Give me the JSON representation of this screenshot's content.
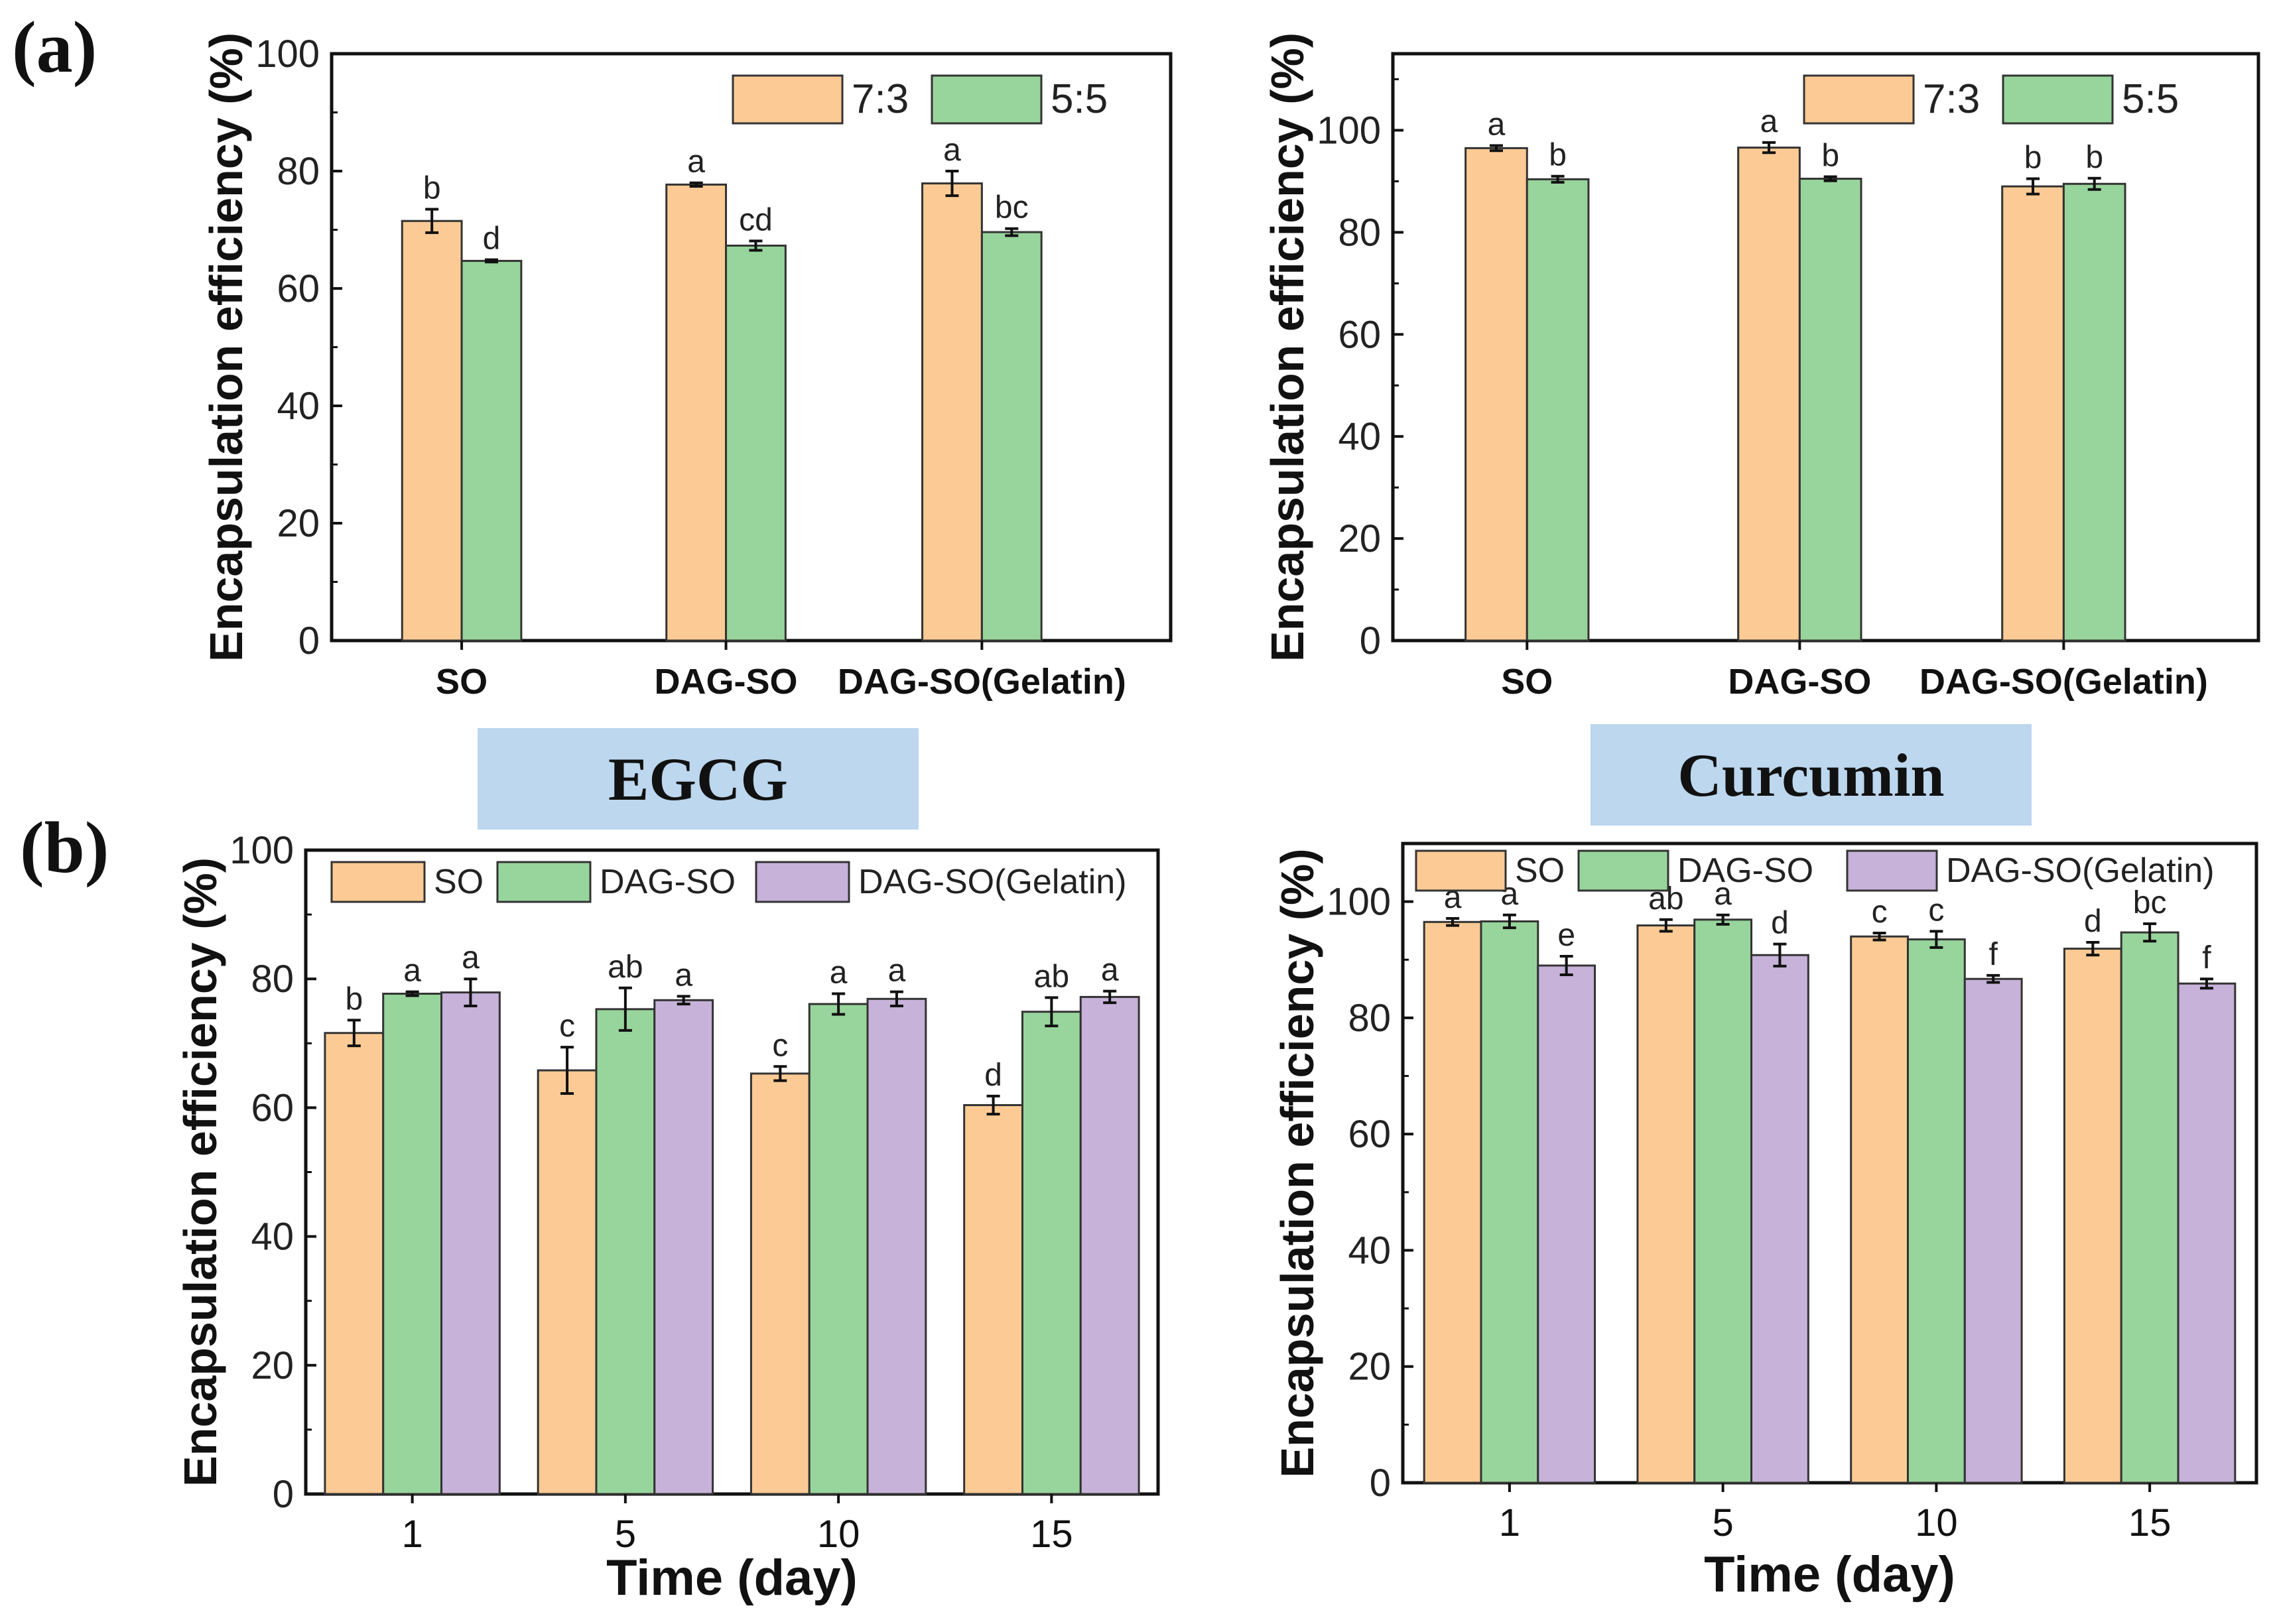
{
  "panel_labels": {
    "a": "(a)",
    "b": "(b)"
  },
  "section_titles": {
    "egcg": "EGCG",
    "curcumin": "Curcumin"
  },
  "colors": {
    "orange": "#fccb95",
    "green": "#98d59c",
    "purple": "#c7b2d9",
    "axis": "#111111"
  },
  "chart_data": [
    {
      "id": "a_egcg",
      "type": "bar",
      "title": "",
      "xlabel": "",
      "ylabel": "Encapsulation efficiency (%)",
      "ylim": [
        0,
        100
      ],
      "yticks": [
        "0",
        "20",
        "40",
        "60",
        "80",
        "100"
      ],
      "legend_position": "top-right",
      "categories": [
        "SO",
        "DAG-SO",
        "DAG-SO(Gelatin)"
      ],
      "series": [
        {
          "name": "7:3",
          "color": "#fccb95",
          "values": [
            71.5,
            77.7,
            77.9
          ],
          "errors": [
            2.0,
            0.3,
            2.1
          ],
          "letters": [
            "b",
            "a",
            "a"
          ]
        },
        {
          "name": "5:5",
          "color": "#98d59c",
          "values": [
            64.7,
            67.3,
            69.6
          ],
          "errors": [
            0.2,
            0.8,
            0.6
          ],
          "letters": [
            "d",
            "cd",
            "bc"
          ]
        }
      ]
    },
    {
      "id": "a_curcumin",
      "type": "bar",
      "title": "",
      "xlabel": "",
      "ylabel": "Encapsulation efficiency (%)",
      "ylim": [
        0,
        115
      ],
      "yticks": [
        "0",
        "20",
        "40",
        "60",
        "80",
        "100"
      ],
      "legend_position": "top-right",
      "categories": [
        "SO",
        "DAG-SO",
        "DAG-SO(Gelatin)"
      ],
      "series": [
        {
          "name": "7:3",
          "color": "#fccb95",
          "values": [
            96.5,
            96.6,
            89.0
          ],
          "errors": [
            0.5,
            1.0,
            1.5
          ],
          "letters": [
            "a",
            "a",
            "b"
          ]
        },
        {
          "name": "5:5",
          "color": "#98d59c",
          "values": [
            90.4,
            90.5,
            89.5
          ],
          "errors": [
            0.6,
            0.4,
            1.1
          ],
          "letters": [
            "b",
            "b",
            "b"
          ]
        }
      ]
    },
    {
      "id": "b_egcg",
      "type": "bar",
      "title": "EGCG",
      "xlabel": "Time (day)",
      "ylabel": "Encapsulation efficiency (%)",
      "ylim": [
        0,
        100
      ],
      "yticks": [
        "0",
        "20",
        "40",
        "60",
        "80",
        "100"
      ],
      "legend_position": "top",
      "categories": [
        "1",
        "5",
        "10",
        "15"
      ],
      "series": [
        {
          "name": "SO",
          "color": "#fccb95",
          "values": [
            71.6,
            65.8,
            65.3,
            60.4
          ],
          "errors": [
            2.0,
            3.6,
            1.1,
            1.4
          ],
          "letters": [
            "b",
            "c",
            "c",
            "d"
          ]
        },
        {
          "name": "DAG-SO",
          "color": "#98d59c",
          "values": [
            77.7,
            75.3,
            76.1,
            74.9
          ],
          "errors": [
            0.3,
            3.3,
            1.6,
            2.2
          ],
          "letters": [
            "a",
            "ab",
            "a",
            "ab"
          ]
        },
        {
          "name": "DAG-SO(Gelatin)",
          "color": "#c7b2d9",
          "values": [
            77.9,
            76.7,
            76.9,
            77.2
          ],
          "errors": [
            2.1,
            0.6,
            1.1,
            0.9
          ],
          "letters": [
            "a",
            "a",
            "a",
            "a"
          ]
        }
      ]
    },
    {
      "id": "b_curcumin",
      "type": "bar",
      "title": "Curcumin",
      "xlabel": "Time (day)",
      "ylabel": "Encapsulation efficiency (%)",
      "ylim": [
        0,
        110
      ],
      "yticks": [
        "0",
        "20",
        "40",
        "60",
        "80",
        "100"
      ],
      "legend_position": "top",
      "categories": [
        "1",
        "5",
        "10",
        "15"
      ],
      "series": [
        {
          "name": "SO",
          "color": "#fccb95",
          "values": [
            96.5,
            95.9,
            94.0,
            91.9
          ],
          "errors": [
            0.6,
            1.0,
            0.6,
            1.1
          ],
          "letters": [
            "a",
            "ab",
            "c",
            "d"
          ]
        },
        {
          "name": "DAG-SO",
          "color": "#98d59c",
          "values": [
            96.6,
            96.9,
            93.5,
            94.7
          ],
          "errors": [
            1.1,
            0.8,
            1.4,
            1.5
          ],
          "letters": [
            "a",
            "a",
            "c",
            "bc"
          ]
        },
        {
          "name": "DAG-SO(Gelatin)",
          "color": "#c7b2d9",
          "values": [
            89.0,
            90.8,
            86.7,
            85.9
          ],
          "errors": [
            1.6,
            1.9,
            0.6,
            0.8
          ],
          "letters": [
            "e",
            "d",
            "f",
            "f"
          ]
        }
      ]
    }
  ]
}
